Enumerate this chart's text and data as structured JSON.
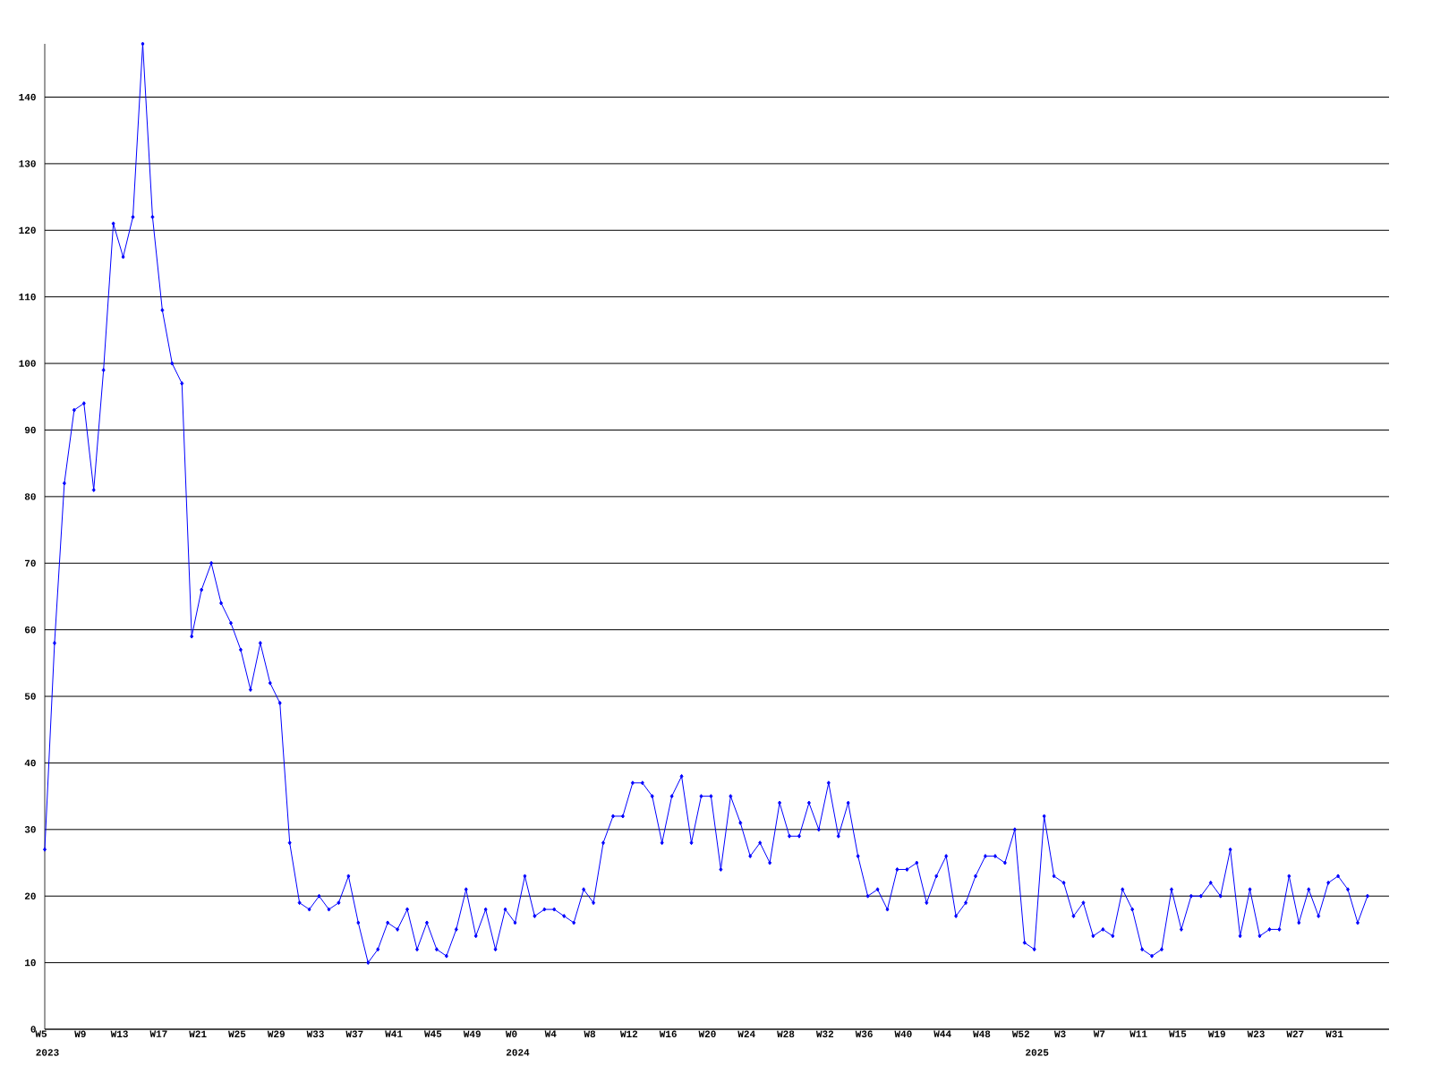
{
  "chart_data": {
    "type": "line",
    "color": "#0000ff",
    "marker": "diamond",
    "line_style": "solid",
    "grid": "y",
    "categories": [
      "W5",
      null,
      null,
      null,
      "W9",
      null,
      null,
      null,
      "W13",
      null,
      null,
      null,
      "W17",
      null,
      null,
      null,
      "W21",
      null,
      null,
      null,
      "W25",
      null,
      null,
      null,
      "W29",
      null,
      null,
      null,
      "W33",
      null,
      null,
      null,
      "W37",
      null,
      null,
      null,
      "W41",
      null,
      null,
      null,
      "W45",
      null,
      null,
      null,
      "W49",
      null,
      null,
      null,
      "W0",
      null,
      null,
      null,
      "W4",
      null,
      null,
      null,
      "W8",
      null,
      null,
      null,
      "W12",
      null,
      null,
      null,
      "W16",
      null,
      null,
      null,
      "W20",
      null,
      null,
      null,
      "W24",
      null,
      null,
      null,
      "W28",
      null,
      null,
      null,
      "W32",
      null,
      null,
      null,
      "W36",
      null,
      null,
      null,
      "W40",
      null,
      null,
      null,
      "W44",
      null,
      null,
      null,
      "W48",
      null,
      null,
      null,
      "W52",
      null,
      null,
      null,
      "W3",
      null,
      null,
      null,
      "W7",
      null,
      null,
      null,
      "W11",
      null,
      null,
      null,
      "W15",
      null,
      null,
      null,
      "W19",
      null,
      null,
      null,
      "W23",
      null,
      null,
      null,
      "W27",
      null,
      null,
      null,
      "W31",
      null,
      null,
      null
    ],
    "values": [
      27,
      58,
      82,
      93,
      94,
      81,
      99,
      121,
      116,
      122,
      148,
      122,
      108,
      100,
      97,
      59,
      66,
      70,
      64,
      61,
      57,
      51,
      58,
      52,
      49,
      28,
      19,
      18,
      20,
      18,
      19,
      23,
      16,
      10,
      12,
      16,
      15,
      18,
      12,
      16,
      12,
      11,
      15,
      21,
      14,
      18,
      12,
      18,
      16,
      23,
      17,
      18,
      18,
      17,
      16,
      21,
      19,
      28,
      32,
      32,
      37,
      37,
      35,
      28,
      35,
      38,
      28,
      35,
      35,
      24,
      35,
      31,
      26,
      28,
      25,
      34,
      29,
      29,
      34,
      30,
      37,
      29,
      34,
      26,
      20,
      21,
      18,
      24,
      24,
      25,
      19,
      23,
      26,
      17,
      19,
      23,
      26,
      26,
      25,
      30,
      13,
      12,
      32,
      23,
      22,
      17,
      19,
      14,
      15,
      14,
      21,
      18,
      12,
      11,
      12,
      21,
      15,
      20,
      20,
      22,
      20,
      27,
      14,
      21,
      14,
      15,
      15,
      23,
      16,
      21,
      17,
      22,
      23,
      21,
      16,
      20
    ],
    "ylim": [
      0,
      148
    ],
    "yticks": [
      0,
      10,
      20,
      30,
      40,
      50,
      60,
      70,
      80,
      90,
      100,
      110,
      120,
      130,
      140
    ],
    "annotations": [
      "2023",
      "2024",
      "2025"
    ]
  }
}
